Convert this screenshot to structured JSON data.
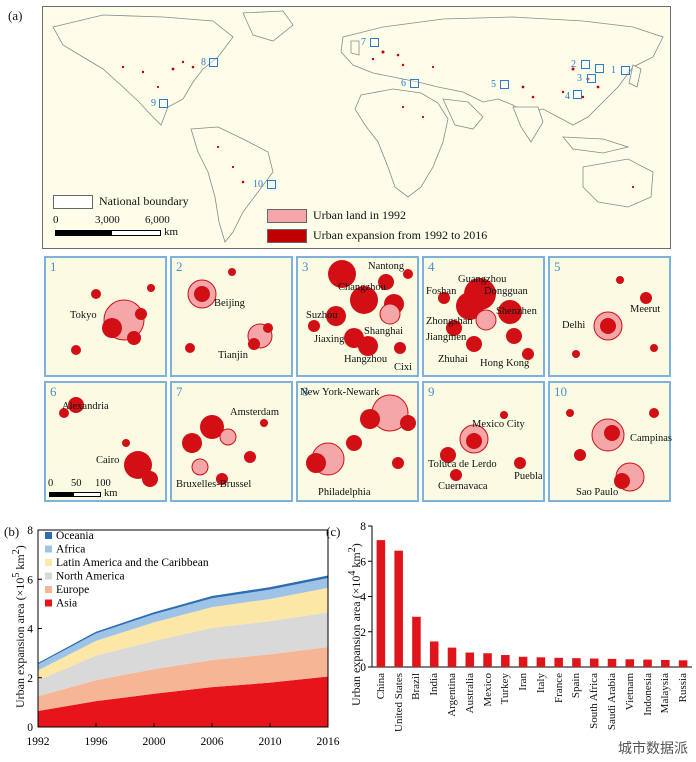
{
  "panel_a": {
    "letter": "(a)",
    "legend": {
      "boundary": "National boundary",
      "urban_1992": "Urban land in 1992",
      "expansion": "Urban expansion from 1992 to 2016"
    },
    "scale": {
      "t0": "0",
      "t1": "3,000",
      "t2": "6,000",
      "unit": "km"
    },
    "markers": [
      "1",
      "2",
      "3",
      "4",
      "5",
      "6",
      "7",
      "8",
      "9",
      "10"
    ],
    "colors": {
      "urban_1992": "#f4a6a8",
      "expansion": "#c00000",
      "boundary": "#777777",
      "land": "#fdfde9"
    }
  },
  "cities": [
    {
      "num": "1",
      "labels": [
        "Tokyo"
      ]
    },
    {
      "num": "2",
      "labels": [
        "Beijing",
        "Tianjin"
      ]
    },
    {
      "num": "3",
      "labels": [
        "Nantong",
        "Changzhou",
        "Suzhou",
        "Shanghai",
        "Jiaxing",
        "Hangzhou",
        "Cixi"
      ]
    },
    {
      "num": "4",
      "labels": [
        "Guangzhou",
        "Foshan",
        "Dongguan",
        "Zhongshan",
        "Shenzhen",
        "Jiangmen",
        "Zhuhai",
        "Hong Kong"
      ]
    },
    {
      "num": "5",
      "labels": [
        "Meerut",
        "Delhi"
      ]
    },
    {
      "num": "6",
      "labels": [
        "Alexandria",
        "Cairo"
      ]
    },
    {
      "num": "7",
      "labels": [
        "Amsterdam",
        "Bruxelles-Brussel"
      ]
    },
    {
      "num": "8",
      "labels": [
        "New York-Newark",
        "Philadelphia"
      ]
    },
    {
      "num": "9",
      "labels": [
        "Mexico City",
        "Toluca de Lerdo",
        "Puebla",
        "Cuernavaca"
      ]
    },
    {
      "num": "10",
      "labels": [
        "Campinas",
        "Sao Paulo"
      ]
    }
  ],
  "city_scale": {
    "t0": "0",
    "t1": "50",
    "t2": "100",
    "unit": "km"
  },
  "chart_data": [
    {
      "type": "area",
      "panel": "(b)",
      "x": [
        "1992",
        "1996",
        "2000",
        "2006",
        "2010",
        "2016"
      ],
      "ylabel_prefix": "Urban expansion area (×10",
      "ylabel_exp": "5",
      "ylabel_unit": " km",
      "ylabel_unit_exp": "2",
      "ylabel_suffix": ")",
      "ylim": [
        0,
        8
      ],
      "yticks": [
        "0",
        "2",
        "4",
        "6",
        "8"
      ],
      "series": [
        {
          "name": "Asia",
          "color": "#e8141b",
          "values": [
            0.65,
            1.05,
            1.35,
            1.62,
            1.8,
            2.05
          ]
        },
        {
          "name": "Europe",
          "color": "#f6b595",
          "values": [
            0.6,
            0.85,
            1.0,
            1.1,
            1.15,
            1.2
          ]
        },
        {
          "name": "North America",
          "color": "#d9d9d9",
          "values": [
            0.65,
            1.0,
            1.15,
            1.3,
            1.35,
            1.4
          ]
        },
        {
          "name": "Latin America and the Caribbean",
          "color": "#fde7a6",
          "values": [
            0.4,
            0.6,
            0.75,
            0.85,
            0.9,
            1.0
          ]
        },
        {
          "name": "Africa",
          "color": "#9fc3e6",
          "values": [
            0.25,
            0.3,
            0.33,
            0.36,
            0.38,
            0.4
          ]
        },
        {
          "name": "Oceania",
          "color": "#2e6db4",
          "values": [
            0.05,
            0.07,
            0.08,
            0.09,
            0.1,
            0.1
          ]
        }
      ]
    },
    {
      "type": "bar",
      "panel": "(c)",
      "categories": [
        "China",
        "United States",
        "Brazil",
        "India",
        "Argentina",
        "Australia",
        "Mexico",
        "Turkey",
        "Iran",
        "Italy",
        "France",
        "Spain",
        "South Africa",
        "Saudi Arabia",
        "Vietnam",
        "Indonesia",
        "Malaysia",
        "Russia"
      ],
      "values": [
        7.2,
        6.6,
        2.85,
        1.45,
        1.1,
        0.82,
        0.78,
        0.68,
        0.58,
        0.55,
        0.52,
        0.5,
        0.48,
        0.46,
        0.44,
        0.42,
        0.4,
        0.38
      ],
      "color": "#e0141b",
      "ylabel_prefix": "Urban expansion area (×10",
      "ylabel_exp": "4",
      "ylabel_unit": " km",
      "ylabel_unit_exp": "2",
      "ylabel_suffix": ")",
      "ylim": [
        0,
        8
      ],
      "yticks": [
        "0",
        "2",
        "4",
        "6",
        "8"
      ]
    }
  ],
  "watermark": "城市数据派"
}
